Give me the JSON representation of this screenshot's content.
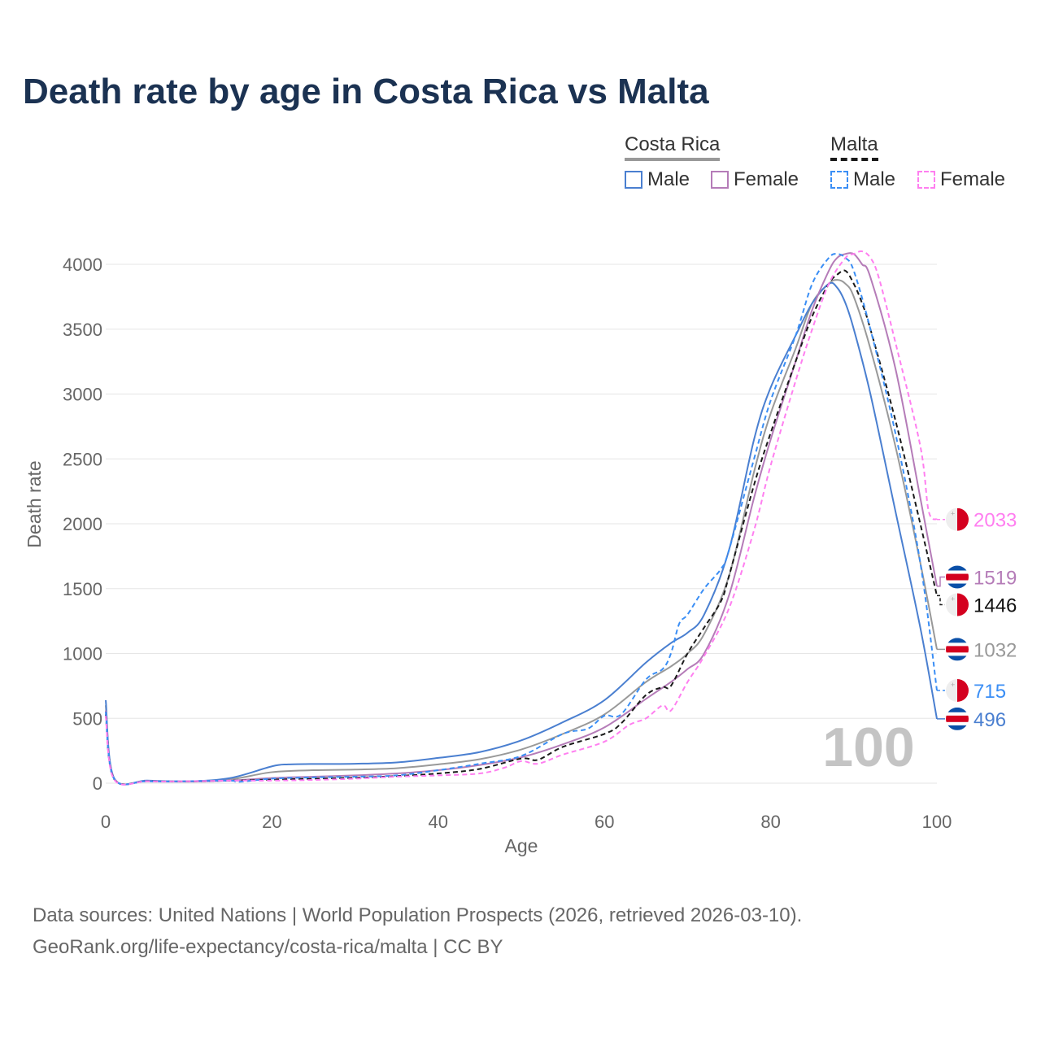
{
  "title": "Death rate by age in Costa Rica vs Malta",
  "legend": {
    "groups": [
      {
        "name": "Costa Rica",
        "items": [
          "Male",
          "Female"
        ]
      },
      {
        "name": "Malta",
        "items": [
          "Male",
          "Female"
        ]
      }
    ]
  },
  "watermark": "100",
  "footer": {
    "line1": "Data sources: United Nations | World Population Prospects (2026, retrieved 2026-03-10).",
    "line2": "GeoRank.org/life-expectancy/costa-rica/malta | CC BY"
  },
  "chart_data": {
    "type": "line",
    "title": "Death rate by age in Costa Rica vs Malta",
    "xlabel": "Age",
    "ylabel": "Death rate",
    "xlim": [
      0,
      100
    ],
    "ylim": [
      0,
      4200
    ],
    "xticks": [
      0,
      20,
      40,
      60,
      80,
      100
    ],
    "yticks": [
      0,
      500,
      1000,
      1500,
      2000,
      2500,
      3000,
      3500,
      4000
    ],
    "grid": true,
    "legend_position": "top-right",
    "series": [
      {
        "name": "Costa Rica Total",
        "country": "costa-rica",
        "color": "#999999",
        "dash": false,
        "end_label": "1032",
        "x": [
          0,
          1,
          5,
          10,
          15,
          20,
          25,
          30,
          35,
          40,
          45,
          50,
          55,
          60,
          65,
          68,
          70,
          72,
          75,
          78,
          80,
          83,
          85,
          87,
          88,
          89,
          90,
          92,
          95,
          98,
          100
        ],
        "y": [
          600,
          38,
          18,
          14,
          30,
          85,
          100,
          105,
          115,
          145,
          185,
          260,
          380,
          530,
          780,
          900,
          1000,
          1150,
          1600,
          2400,
          2850,
          3350,
          3700,
          3850,
          3880,
          3850,
          3750,
          3350,
          2600,
          1700,
          1032
        ]
      },
      {
        "name": "Costa Rica Male",
        "country": "costa-rica",
        "color": "#4a7fd0",
        "dash": false,
        "end_label": "496",
        "x": [
          0,
          1,
          5,
          10,
          15,
          20,
          22,
          25,
          30,
          35,
          40,
          45,
          50,
          55,
          60,
          65,
          68,
          70,
          72,
          75,
          78,
          80,
          83,
          85,
          87,
          88,
          89,
          90,
          92,
          95,
          98,
          100
        ],
        "y": [
          640,
          40,
          20,
          15,
          40,
          130,
          145,
          148,
          150,
          160,
          195,
          240,
          330,
          470,
          640,
          930,
          1080,
          1160,
          1300,
          1800,
          2650,
          3050,
          3450,
          3700,
          3850,
          3820,
          3700,
          3500,
          3000,
          2100,
          1200,
          496
        ]
      },
      {
        "name": "Costa Rica Female",
        "country": "costa-rica",
        "color": "#b57cb8",
        "dash": false,
        "end_label": "1519",
        "x": [
          0,
          1,
          5,
          10,
          15,
          20,
          25,
          30,
          35,
          40,
          45,
          50,
          55,
          60,
          65,
          68,
          70,
          72,
          75,
          78,
          80,
          83,
          85,
          87,
          88,
          89,
          90,
          91,
          92,
          95,
          98,
          100
        ],
        "y": [
          560,
          35,
          15,
          12,
          20,
          40,
          50,
          60,
          75,
          100,
          140,
          200,
          300,
          430,
          650,
          780,
          880,
          1000,
          1450,
          2200,
          2650,
          3250,
          3650,
          3950,
          4050,
          4080,
          4080,
          4000,
          3900,
          3200,
          2200,
          1519
        ]
      },
      {
        "name": "Malta Total",
        "country": "malta",
        "color": "#1a1a1a",
        "dash": true,
        "end_label": "1446",
        "x": [
          0,
          1,
          5,
          10,
          15,
          20,
          25,
          30,
          35,
          40,
          45,
          50,
          52,
          55,
          60,
          62,
          65,
          67,
          68,
          70,
          72,
          74,
          75,
          78,
          80,
          83,
          85,
          87,
          88,
          89,
          90,
          91,
          92,
          95,
          98,
          100
        ],
        "y": [
          530,
          33,
          15,
          14,
          20,
          28,
          35,
          42,
          55,
          75,
          110,
          190,
          180,
          280,
          380,
          460,
          680,
          740,
          750,
          1000,
          1200,
          1400,
          1600,
          2300,
          2700,
          3250,
          3600,
          3850,
          3920,
          3950,
          3850,
          3700,
          3500,
          2800,
          2000,
          1446
        ]
      },
      {
        "name": "Malta Male",
        "country": "malta",
        "color": "#3a8ef5",
        "dash": true,
        "end_label": "715",
        "x": [
          0,
          1,
          5,
          10,
          15,
          16,
          20,
          25,
          30,
          35,
          40,
          45,
          50,
          55,
          58,
          60,
          62,
          65,
          67,
          68,
          69,
          70,
          72,
          74,
          75,
          78,
          80,
          83,
          85,
          87,
          88,
          89,
          90,
          92,
          95,
          98,
          100
        ],
        "y": [
          550,
          35,
          15,
          15,
          20,
          10,
          35,
          45,
          50,
          60,
          100,
          150,
          210,
          380,
          420,
          520,
          530,
          800,
          880,
          1000,
          1230,
          1300,
          1500,
          1650,
          1800,
          2500,
          2950,
          3450,
          3850,
          4050,
          4080,
          4050,
          3950,
          3500,
          2700,
          1700,
          715
        ]
      },
      {
        "name": "Malta Female",
        "country": "malta",
        "color": "#ff7ff0",
        "dash": true,
        "end_label": "2033",
        "x": [
          0,
          1,
          5,
          10,
          15,
          20,
          25,
          30,
          35,
          40,
          45,
          48,
          50,
          52,
          55,
          60,
          63,
          65,
          67,
          68,
          70,
          72,
          75,
          78,
          80,
          83,
          85,
          87,
          89,
          90,
          91,
          92,
          93,
          95,
          98,
          99,
          100
        ],
        "y": [
          520,
          30,
          15,
          15,
          20,
          20,
          25,
          35,
          50,
          60,
          75,
          120,
          170,
          150,
          220,
          320,
          450,
          500,
          600,
          560,
          780,
          980,
          1350,
          1950,
          2450,
          3100,
          3500,
          3850,
          4050,
          4080,
          4100,
          4050,
          3900,
          3400,
          2600,
          2100,
          2033
        ]
      }
    ]
  }
}
